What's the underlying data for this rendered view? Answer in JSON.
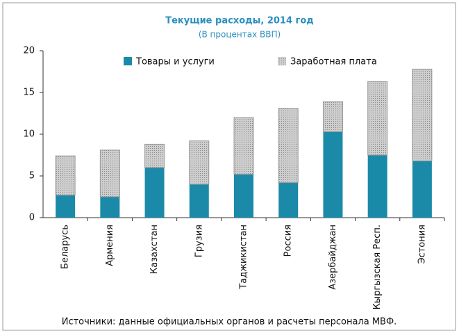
{
  "chart_data": {
    "type": "stacked_bar",
    "title": "Текущие расходы, 2014 год",
    "subtitle": "(В процентах ВВП)",
    "categories": [
      "Беларусь",
      "Армения",
      "Казахстан",
      "Грузия",
      "Таджикистан",
      "Россия",
      "Азербайджан",
      "Кыргызская Респ.",
      "Эстония"
    ],
    "series": [
      {
        "name": "Товары и услуги",
        "color": "#1a8aa8",
        "values": [
          2.7,
          2.5,
          6.0,
          4.0,
          5.2,
          4.2,
          10.3,
          7.5,
          6.8
        ]
      },
      {
        "name": "Заработная плата",
        "color": "#cdcdcd",
        "values": [
          4.7,
          5.6,
          2.8,
          5.2,
          6.8,
          8.9,
          3.6,
          8.8,
          11.0
        ]
      }
    ],
    "ylim": [
      0,
      20
    ],
    "yticks": [
      0,
      5,
      10,
      15,
      20
    ],
    "source": "Источники: данные официальных органов и расчеты персонала МВФ."
  }
}
